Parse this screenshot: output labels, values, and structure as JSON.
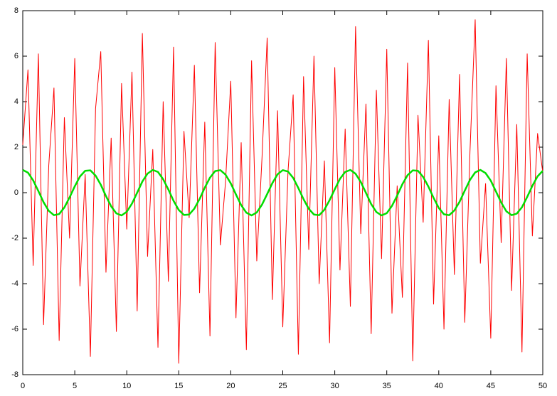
{
  "chart_data": {
    "type": "line",
    "x": [
      0,
      0.5,
      1,
      1.5,
      2,
      2.5,
      3,
      3.5,
      4,
      4.5,
      5,
      5.5,
      6,
      6.5,
      7,
      7.5,
      8,
      8.5,
      9,
      9.5,
      10,
      10.5,
      11,
      11.5,
      12,
      12.5,
      13,
      13.5,
      14,
      14.5,
      15,
      15.5,
      16,
      16.5,
      17,
      17.5,
      18,
      18.5,
      19,
      19.5,
      20,
      20.5,
      21,
      21.5,
      22,
      22.5,
      23,
      23.5,
      24,
      24.5,
      25,
      25.5,
      26,
      26.5,
      27,
      27.5,
      28,
      28.5,
      29,
      29.5,
      30,
      30.5,
      31,
      31.5,
      32,
      32.5,
      33,
      33.5,
      34,
      34.5,
      35,
      35.5,
      36,
      36.5,
      37,
      37.5,
      38,
      38.5,
      39,
      39.5,
      40,
      40.5,
      41,
      41.5,
      42,
      42.5,
      43,
      43.5,
      44,
      44.5,
      45,
      45.5,
      46,
      46.5,
      47,
      47.5,
      48,
      48.5,
      49,
      49.5,
      50
    ],
    "series": [
      {
        "color": "#ff0000",
        "width": 1,
        "values": [
          2.1,
          5.4,
          -3.2,
          6.1,
          -5.8,
          1.2,
          4.6,
          -6.5,
          3.3,
          -2.0,
          5.9,
          -4.1,
          0.8,
          -7.2,
          3.7,
          6.2,
          -3.5,
          2.4,
          -6.1,
          4.8,
          -1.6,
          5.3,
          -5.2,
          7.0,
          -2.8,
          1.9,
          -6.8,
          4.0,
          -3.9,
          6.4,
          -7.5,
          2.7,
          -1.1,
          5.6,
          -4.4,
          3.1,
          -6.3,
          6.6,
          -2.3,
          0.5,
          4.9,
          -5.5,
          2.2,
          -6.9,
          5.8,
          -3.0,
          1.5,
          6.8,
          -4.7,
          3.6,
          -5.9,
          0.9,
          4.3,
          -7.1,
          5.1,
          -2.5,
          6.0,
          -4.0,
          1.4,
          -6.6,
          5.5,
          -3.4,
          2.8,
          -5.0,
          7.3,
          -1.8,
          3.9,
          -6.2,
          4.5,
          -2.9,
          6.3,
          -5.3,
          0.3,
          -4.6,
          5.7,
          -7.4,
          3.4,
          -1.3,
          6.7,
          -4.9,
          2.5,
          -6.0,
          4.1,
          -3.6,
          5.2,
          -5.7,
          1.8,
          7.6,
          -3.1,
          0.4,
          -6.4,
          4.7,
          -2.2,
          5.9,
          -4.3,
          3.0,
          -7.0,
          6.1,
          -1.9,
          2.6,
          0.9
        ]
      },
      {
        "color": "#00dd00",
        "width": 2.5,
        "values": [
          1,
          0.88,
          0.54,
          0.07,
          -0.42,
          -0.8,
          -0.99,
          -0.94,
          -0.65,
          -0.21,
          0.28,
          0.71,
          0.96,
          0.98,
          0.75,
          0.35,
          -0.15,
          -0.6,
          -0.91,
          -1,
          -0.84,
          -0.48,
          0,
          0.49,
          0.84,
          1,
          0.91,
          0.59,
          0.14,
          -0.36,
          -0.76,
          -0.98,
          -0.96,
          -0.7,
          -0.28,
          0.22,
          0.66,
          0.95,
          0.99,
          0.79,
          0.41,
          -0.08,
          -0.55,
          -0.88,
          -1,
          -0.87,
          -0.53,
          -0.06,
          0.42,
          0.81,
          0.99,
          0.93,
          0.65,
          0.2,
          -0.29,
          -0.71,
          -0.96,
          -0.99,
          -0.75,
          -0.33,
          0.15,
          0.61,
          0.91,
          1,
          0.83,
          0.47,
          -0.01,
          -0.5,
          -0.85,
          -1,
          -0.9,
          -0.58,
          -0.13,
          0.37,
          0.77,
          0.98,
          0.96,
          0.69,
          0.27,
          -0.23,
          -0.67,
          -0.95,
          -0.99,
          -0.78,
          -0.4,
          0.09,
          0.56,
          0.89,
          1,
          0.86,
          0.53,
          0.05,
          -0.43,
          -0.82,
          -0.99,
          -0.92,
          -0.64,
          -0.19,
          0.3,
          0.72,
          0.96
        ]
      }
    ],
    "xlim": [
      0,
      50
    ],
    "xticks": [
      0,
      5,
      10,
      15,
      20,
      25,
      30,
      35,
      40,
      45,
      50
    ],
    "ylim": [
      -8,
      8
    ],
    "yticks": [
      -8,
      -6,
      -4,
      -2,
      0,
      2,
      4,
      6,
      8
    ]
  }
}
